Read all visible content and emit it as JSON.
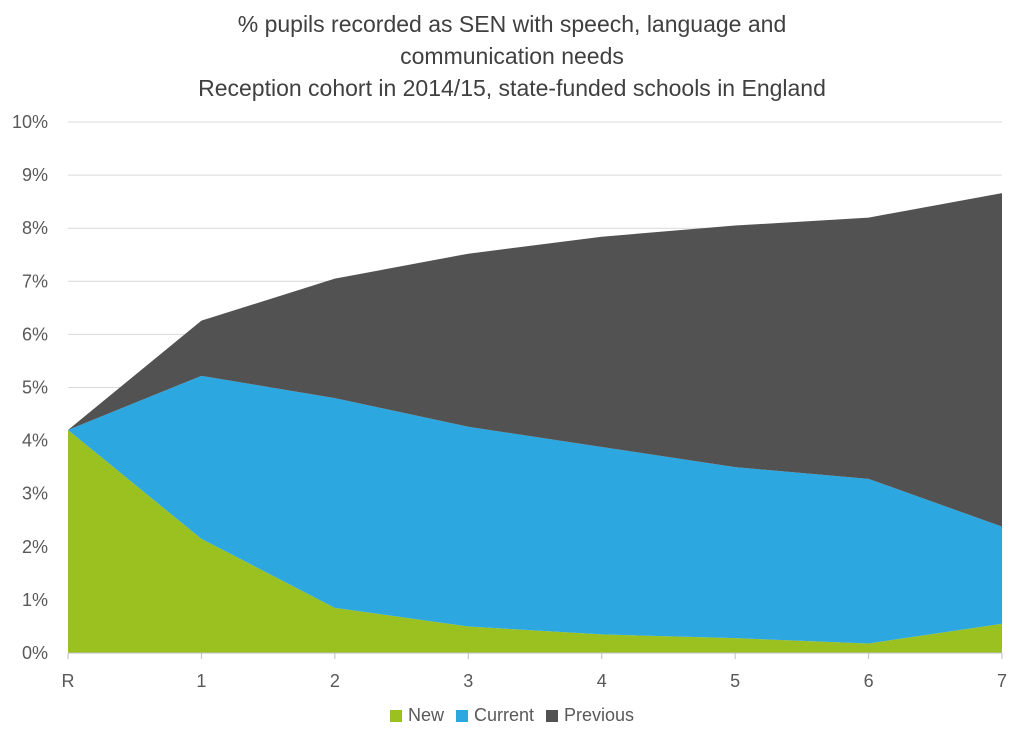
{
  "chart_data": {
    "type": "area",
    "stacked": true,
    "title": [
      "% pupils recorded as SEN with speech, language and",
      "communication needs",
      "Reception cohort in 2014/15, state-funded schools in England"
    ],
    "categories": [
      "R",
      "1",
      "2",
      "3",
      "4",
      "5",
      "6",
      "7"
    ],
    "ylim": [
      0,
      10
    ],
    "yticks": [
      "0%",
      "1%",
      "2%",
      "3%",
      "4%",
      "5%",
      "6%",
      "7%",
      "8%",
      "9%",
      "10%"
    ],
    "grid": true,
    "legend_position": "bottom",
    "series": [
      {
        "name": "New",
        "color": "#9ac120",
        "values": [
          4.2,
          2.15,
          0.85,
          0.5,
          0.35,
          0.28,
          0.18,
          0.55
        ]
      },
      {
        "name": "Current",
        "color": "#2ca7e0",
        "values": [
          0.0,
          3.07,
          3.95,
          3.76,
          3.53,
          3.22,
          3.1,
          1.83
        ]
      },
      {
        "name": "Previous",
        "color": "#525252",
        "values": [
          0.0,
          1.04,
          2.25,
          3.26,
          3.96,
          4.55,
          4.92,
          6.28
        ]
      }
    ]
  }
}
